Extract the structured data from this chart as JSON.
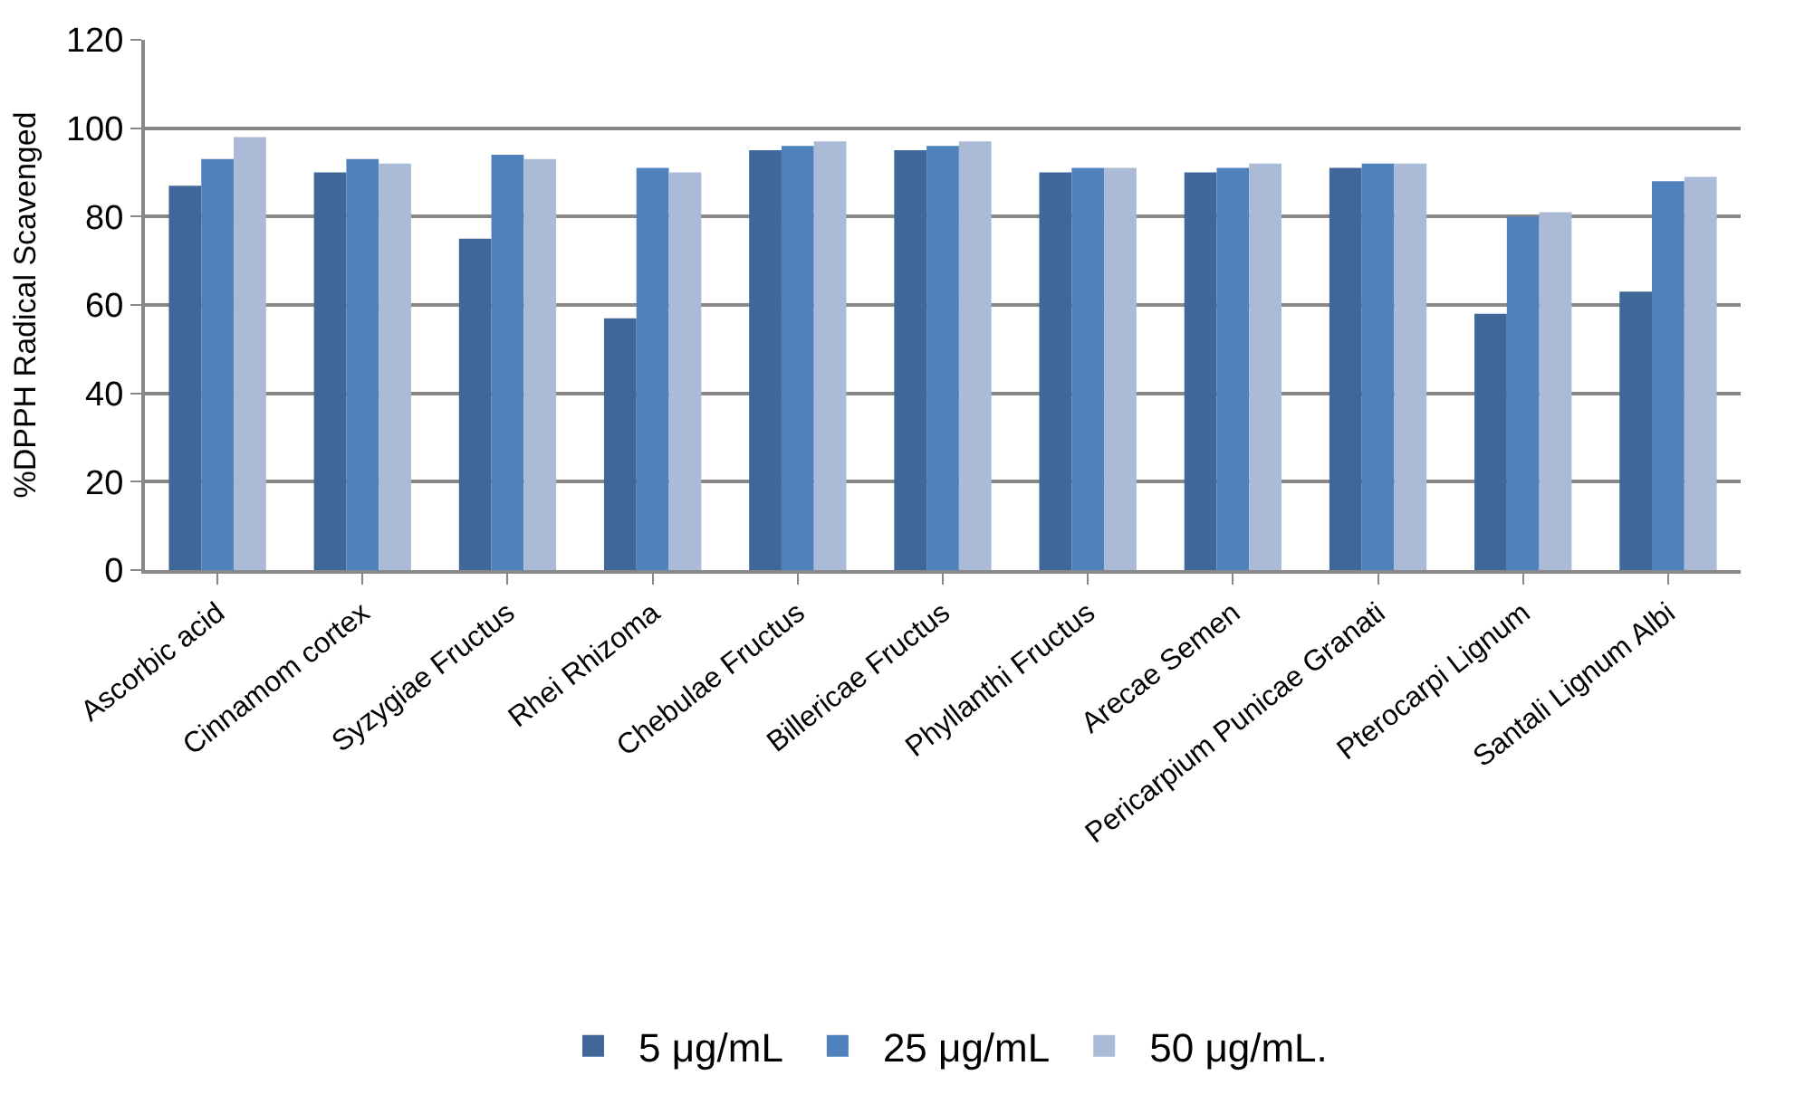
{
  "chart_data": {
    "type": "bar",
    "ylabel": "%DPPH Radical Scavenged",
    "categories": [
      "Ascorbic acid",
      "Cinnamom cortex",
      "Syzygiae Fructus",
      "Rhei Rhizoma",
      "Chebulae Fructus",
      "Billericae Fructus",
      "Phyllanthi Fructus",
      "Arecae Semen",
      "Pericarpium Punicae Granati",
      "Pterocarpi Lignum",
      "Santali Lignum Albi"
    ],
    "series": [
      {
        "name": "5 μg/mL",
        "color": "#3f6899",
        "values": [
          87,
          90,
          75,
          57,
          95,
          95,
          90,
          90,
          91,
          58,
          63
        ]
      },
      {
        "name": "25 μg/mL",
        "color": "#4f81bd",
        "values": [
          93,
          93,
          94,
          91,
          96,
          96,
          91,
          91,
          92,
          80,
          88
        ]
      },
      {
        "name": "50 μg/mL.",
        "color": "#aabad7",
        "values": [
          98,
          92,
          93,
          90,
          97,
          97,
          91,
          92,
          92,
          81,
          89
        ]
      }
    ],
    "ylim": [
      0,
      120
    ],
    "yticks": [
      0,
      20,
      40,
      60,
      80,
      100,
      120
    ],
    "grid": "y",
    "legend": "bottom"
  }
}
